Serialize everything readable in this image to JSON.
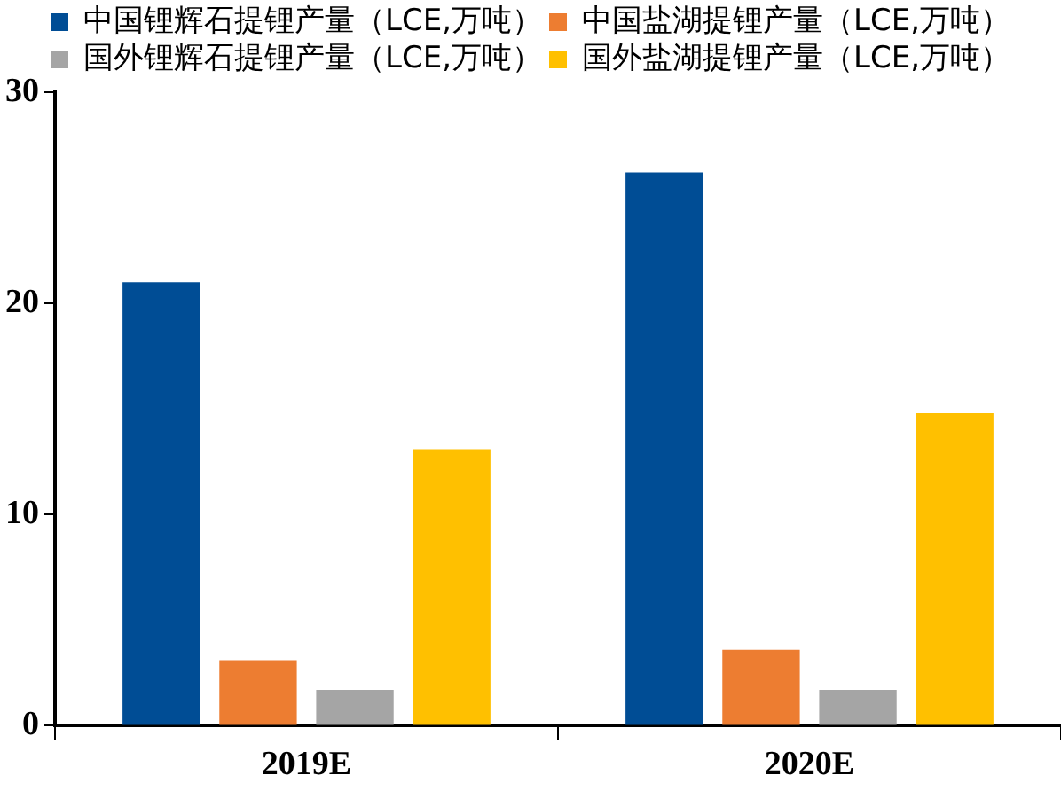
{
  "chart_data": {
    "type": "bar",
    "categories": [
      "2019E",
      "2020E"
    ],
    "series": [
      {
        "name": "中国锂辉石提锂产量（LCE,万吨）",
        "color": "#004d95",
        "values": [
          21.0,
          26.2
        ]
      },
      {
        "name": "中国盐湖提锂产量（LCE,万吨）",
        "color": "#ed7d31",
        "values": [
          3.1,
          3.6
        ]
      },
      {
        "name": "国外锂辉石提锂产量（LCE,万吨）",
        "color": "#a5a5a5",
        "values": [
          1.7,
          1.7
        ]
      },
      {
        "name": "国外盐湖提锂产量（LCE,万吨）",
        "color": "#ffc000",
        "values": [
          13.1,
          14.8
        ]
      }
    ],
    "ylim": [
      0,
      30
    ],
    "yticks": [
      0,
      10,
      20,
      30
    ],
    "grid": false,
    "legend": "top"
  }
}
